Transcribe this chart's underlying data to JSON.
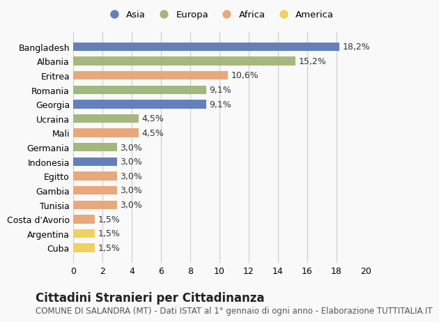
{
  "categories": [
    "Cuba",
    "Argentina",
    "Costa d'Avorio",
    "Tunisia",
    "Gambia",
    "Egitto",
    "Indonesia",
    "Germania",
    "Mali",
    "Ucraina",
    "Georgia",
    "Romania",
    "Eritrea",
    "Albania",
    "Bangladesh"
  ],
  "values": [
    1.5,
    1.5,
    1.5,
    3.0,
    3.0,
    3.0,
    3.0,
    3.0,
    4.5,
    4.5,
    9.1,
    9.1,
    10.6,
    15.2,
    18.2
  ],
  "continents": [
    "America",
    "America",
    "Africa",
    "Africa",
    "Africa",
    "Africa",
    "Asia",
    "Europa",
    "Africa",
    "Europa",
    "Asia",
    "Europa",
    "Africa",
    "Europa",
    "Asia"
  ],
  "colors": {
    "Asia": "#6380bb",
    "Europa": "#a3b87c",
    "Africa": "#e8a87c",
    "America": "#f0d060"
  },
  "legend_order": [
    "Asia",
    "Europa",
    "Africa",
    "America"
  ],
  "title": "Cittadini Stranieri per Cittadinanza",
  "subtitle": "COMUNE DI SALANDRA (MT) - Dati ISTAT al 1° gennaio di ogni anno - Elaborazione TUTTITALIA.IT",
  "xlim": [
    0,
    20
  ],
  "xticks": [
    0,
    2,
    4,
    6,
    8,
    10,
    12,
    14,
    16,
    18,
    20
  ],
  "background_color": "#f9f9f9",
  "bar_height": 0.6,
  "label_fontsize": 9,
  "tick_fontsize": 9,
  "title_fontsize": 12,
  "subtitle_fontsize": 8.5
}
